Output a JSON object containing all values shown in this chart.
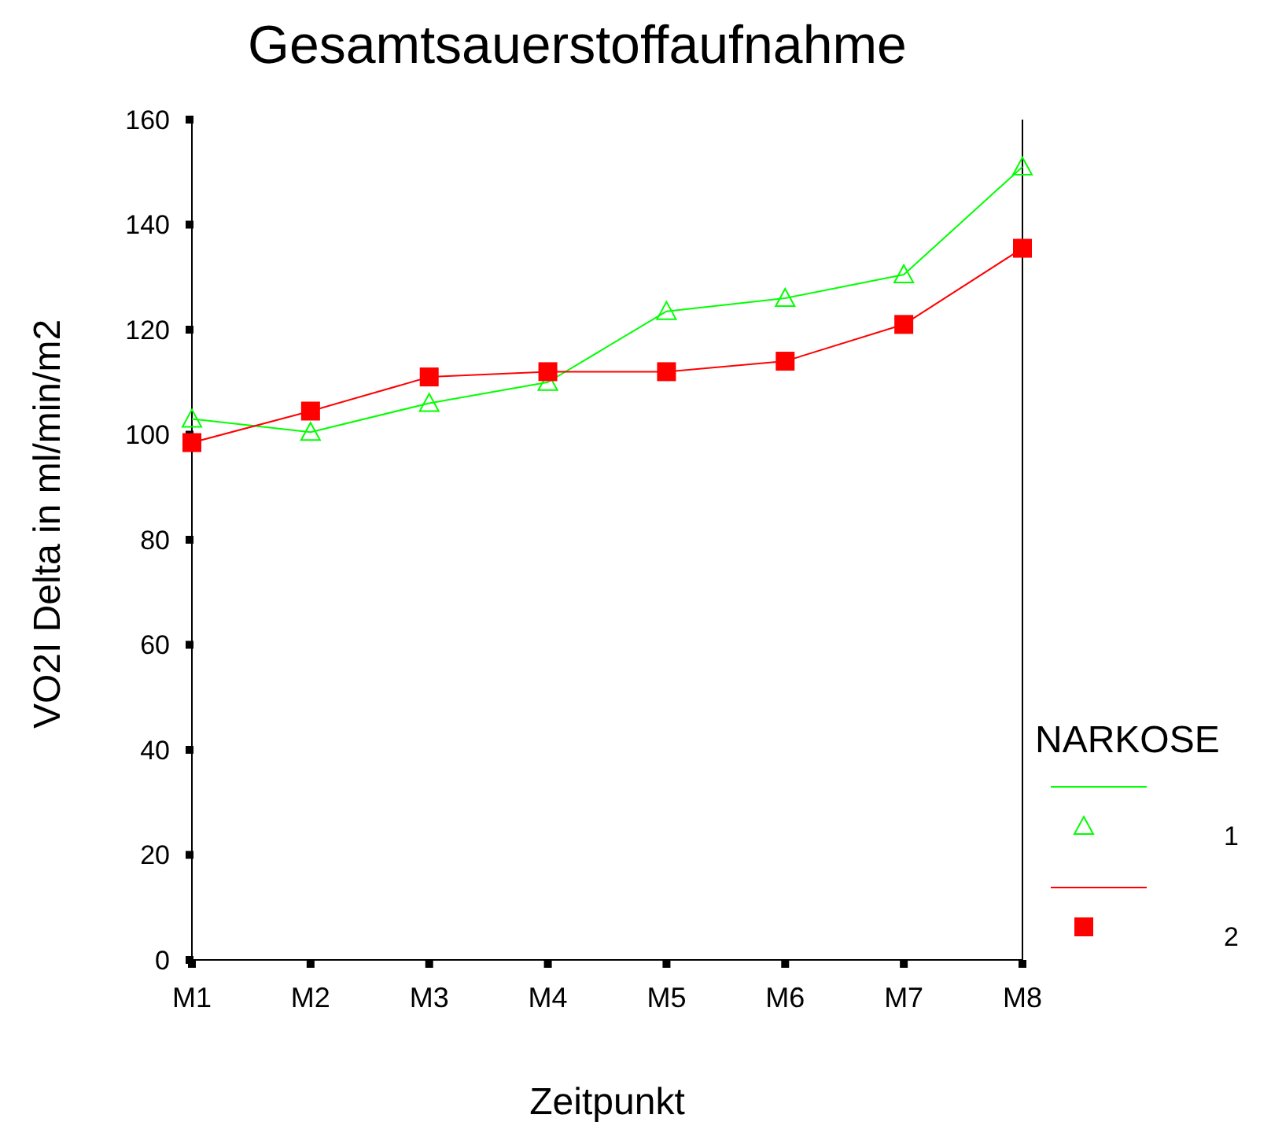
{
  "chart_data": {
    "type": "line",
    "title": "Gesamtsauerstoffaufnahme",
    "xlabel": "Zeitpunkt",
    "ylabel": "VO2I Delta in ml/min/m2",
    "legend_title": "NARKOSE",
    "legend": "right",
    "categories": [
      "M1",
      "M2",
      "M3",
      "M4",
      "M5",
      "M6",
      "M7",
      "M8"
    ],
    "ylim": [
      0,
      160
    ],
    "yticks": [
      0,
      20,
      40,
      60,
      80,
      100,
      120,
      140,
      160
    ],
    "grid": false,
    "series": [
      {
        "name": "1",
        "color": "#00ff00",
        "marker": "triangle",
        "values": [
          103,
          100.5,
          106,
          110,
          123.5,
          126,
          130.5,
          151
        ]
      },
      {
        "name": "2",
        "color": "#ff0000",
        "marker": "square",
        "values": [
          98.5,
          104.5,
          111,
          112,
          112,
          114,
          121,
          135.5
        ]
      }
    ]
  }
}
